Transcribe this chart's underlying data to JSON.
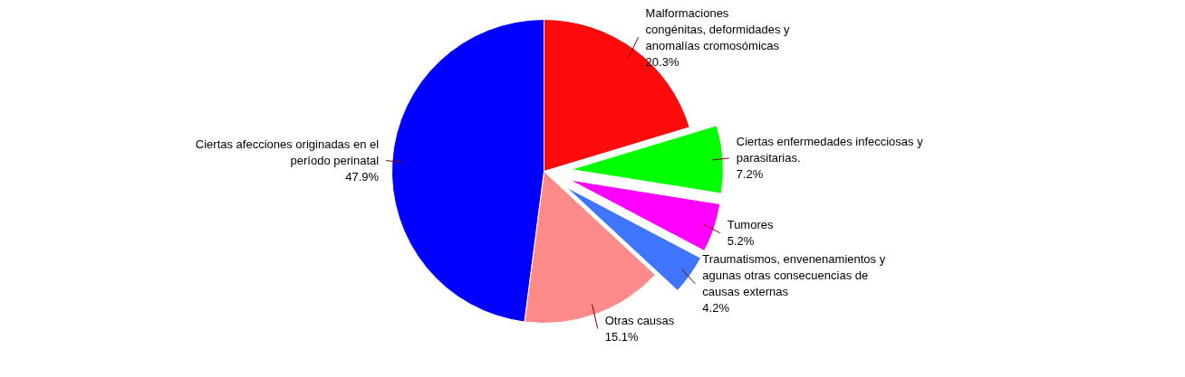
{
  "chart_data": {
    "type": "pie",
    "categories": [
      "Malformaciones\ncongénitas, deformidades y\nanomalías cromosómicas",
      "Ciertas enfermedades infecciosas y\nparasitarias.",
      "Tumores",
      "Traumatismos, envenenamientos  y\nagunas otras consecuencias de\ncausas externas",
      "Otras causas",
      "Ciertas afecciones originadas en el\nperíodo perinatal"
    ],
    "values": [
      20.3,
      7.2,
      5.2,
      4.2,
      15.1,
      47.9
    ],
    "colors": [
      "#fe0b0b",
      "#00ff00",
      "#ff00ff",
      "#3f75ff",
      "#ff8a8a",
      "#0000ff"
    ],
    "value_labels": [
      "20.3%",
      "7.2%",
      "5.2%",
      "4.2%",
      "15.1%",
      "47.9%"
    ]
  }
}
